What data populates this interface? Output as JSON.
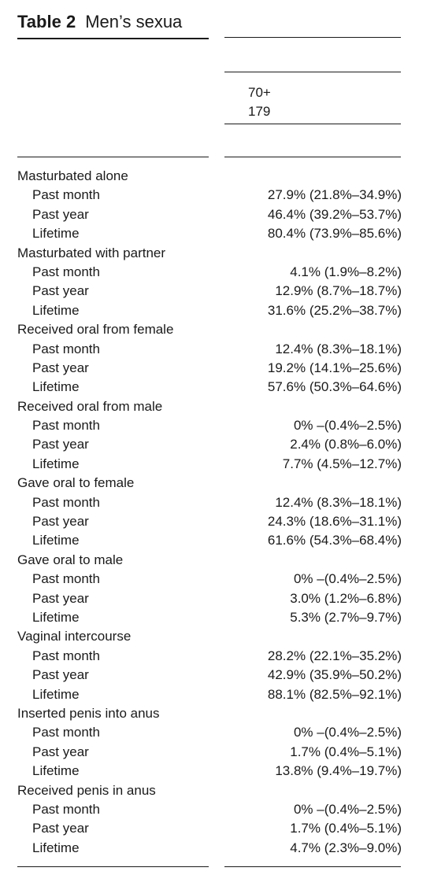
{
  "table": {
    "label": "Table 2",
    "title_text": "Men’s sexua",
    "column_header": {
      "group": "70+",
      "n": "179"
    },
    "categories": [
      {
        "name": "Masturbated alone",
        "items": [
          {
            "period": "Past month",
            "value": "27.9% (21.8%–34.9%)"
          },
          {
            "period": "Past year",
            "value": "46.4% (39.2%–53.7%)"
          },
          {
            "period": "Lifetime",
            "value": "80.4% (73.9%–85.6%)"
          }
        ]
      },
      {
        "name": "Masturbated with partner",
        "items": [
          {
            "period": "Past month",
            "value": "4.1% (1.9%–8.2%)"
          },
          {
            "period": "Past year",
            "value": "12.9% (8.7%–18.7%)"
          },
          {
            "period": "Lifetime",
            "value": "31.6% (25.2%–38.7%)"
          }
        ]
      },
      {
        "name": "Received oral from female",
        "items": [
          {
            "period": "Past month",
            "value": "12.4% (8.3%–18.1%)"
          },
          {
            "period": "Past year",
            "value": "19.2% (14.1%–25.6%)"
          },
          {
            "period": "Lifetime",
            "value": "57.6% (50.3%–64.6%)"
          }
        ]
      },
      {
        "name": "Received oral from male",
        "items": [
          {
            "period": "Past month",
            "value": "0% –(0.4%–2.5%)"
          },
          {
            "period": "Past year",
            "value": "2.4% (0.8%–6.0%)"
          },
          {
            "period": "Lifetime",
            "value": "7.7% (4.5%–12.7%)"
          }
        ]
      },
      {
        "name": "Gave oral to female",
        "items": [
          {
            "period": "Past month",
            "value": "12.4% (8.3%–18.1%)"
          },
          {
            "period": "Past year",
            "value": "24.3% (18.6%–31.1%)"
          },
          {
            "period": "Lifetime",
            "value": "61.6% (54.3%–68.4%)"
          }
        ]
      },
      {
        "name": "Gave oral to male",
        "items": [
          {
            "period": "Past month",
            "value": "0% –(0.4%–2.5%)"
          },
          {
            "period": "Past year",
            "value": "3.0% (1.2%–6.8%)"
          },
          {
            "period": "Lifetime",
            "value": "5.3% (2.7%–9.7%)"
          }
        ]
      },
      {
        "name": "Vaginal intercourse",
        "items": [
          {
            "period": "Past month",
            "value": "28.2% (22.1%–35.2%)"
          },
          {
            "period": "Past year",
            "value": "42.9% (35.9%–50.2%)"
          },
          {
            "period": "Lifetime",
            "value": "88.1% (82.5%–92.1%)"
          }
        ]
      },
      {
        "name": "Inserted penis into anus",
        "items": [
          {
            "period": "Past month",
            "value": "0% –(0.4%–2.5%)"
          },
          {
            "period": "Past year",
            "value": "1.7% (0.4%–5.1%)"
          },
          {
            "period": "Lifetime",
            "value": "13.8% (9.4%–19.7%)"
          }
        ]
      },
      {
        "name": "Received penis in anus",
        "items": [
          {
            "period": "Past month",
            "value": "0% –(0.4%–2.5%)"
          },
          {
            "period": "Past year",
            "value": "1.7% (0.4%–5.1%)"
          },
          {
            "period": "Lifetime",
            "value": "4.7% (2.3%–9.0%)"
          }
        ]
      }
    ]
  }
}
